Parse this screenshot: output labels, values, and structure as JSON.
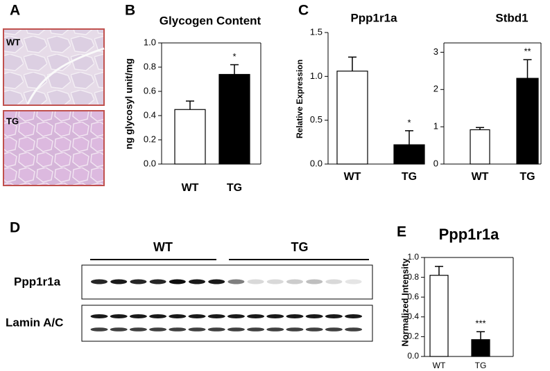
{
  "figure": {
    "panel_letters": [
      "A",
      "B",
      "C",
      "D",
      "E"
    ],
    "histology_labels": [
      "WT",
      "TG"
    ],
    "blot_groups": [
      "WT",
      "TG"
    ],
    "blot_rows": [
      "Ppp1r1a",
      "Lamin A/C"
    ]
  },
  "chart_data": [
    {
      "type": "bar",
      "title": "Glycogen Content",
      "y_label": "ng glycosyl unit/mg",
      "categories": [
        "WT",
        "TG"
      ],
      "values": [
        0.45,
        0.74
      ],
      "errors": [
        0.07,
        0.08
      ],
      "colors": [
        "#ffffff",
        "#000000"
      ],
      "annotation": "*",
      "ylim": [
        0,
        1
      ],
      "yticks": [
        {
          "value": 0,
          "label": "0.0"
        },
        0.2,
        0.4,
        0.6,
        0.8,
        {
          "value": 1,
          "label": "1.0"
        }
      ],
      "box": true
    },
    {
      "type": "bar",
      "title": "Ppp1r1a",
      "y_label": "Relative Expression",
      "categories": [
        "WT",
        "TG"
      ],
      "values": [
        1.06,
        0.22
      ],
      "errors": [
        0.16,
        0.16
      ],
      "colors": [
        "#ffffff",
        "#000000"
      ],
      "annotation": "*",
      "ylim": [
        0,
        1.5
      ],
      "yticks": [
        {
          "value": 0,
          "label": "0.0"
        },
        0.5,
        {
          "value": 1,
          "label": "1.0"
        },
        1.5
      ],
      "box": false
    },
    {
      "type": "bar",
      "title": "Stbd1",
      "categories": [
        "WT",
        "TG"
      ],
      "values": [
        0.92,
        2.3
      ],
      "errors": [
        0.06,
        0.5
      ],
      "colors": [
        "#ffffff",
        "#000000"
      ],
      "annotation": "**",
      "ylim": [
        0,
        3.25
      ],
      "yticks": [
        0,
        1,
        2,
        3
      ],
      "box": true
    },
    {
      "type": "bar",
      "title": "Ppp1r1a",
      "y_label": "Normalized Intensity",
      "categories": [
        "WT",
        "TG"
      ],
      "values": [
        0.82,
        0.17
      ],
      "errors": [
        0.09,
        0.08
      ],
      "colors": [
        "#ffffff",
        "#000000"
      ],
      "annotation": "***",
      "ylim": [
        0,
        1
      ],
      "yticks": [
        {
          "value": 0,
          "label": "0.0"
        },
        0.2,
        0.4,
        0.6,
        0.8,
        {
          "value": 1,
          "label": "1.0"
        }
      ],
      "box": true
    }
  ]
}
